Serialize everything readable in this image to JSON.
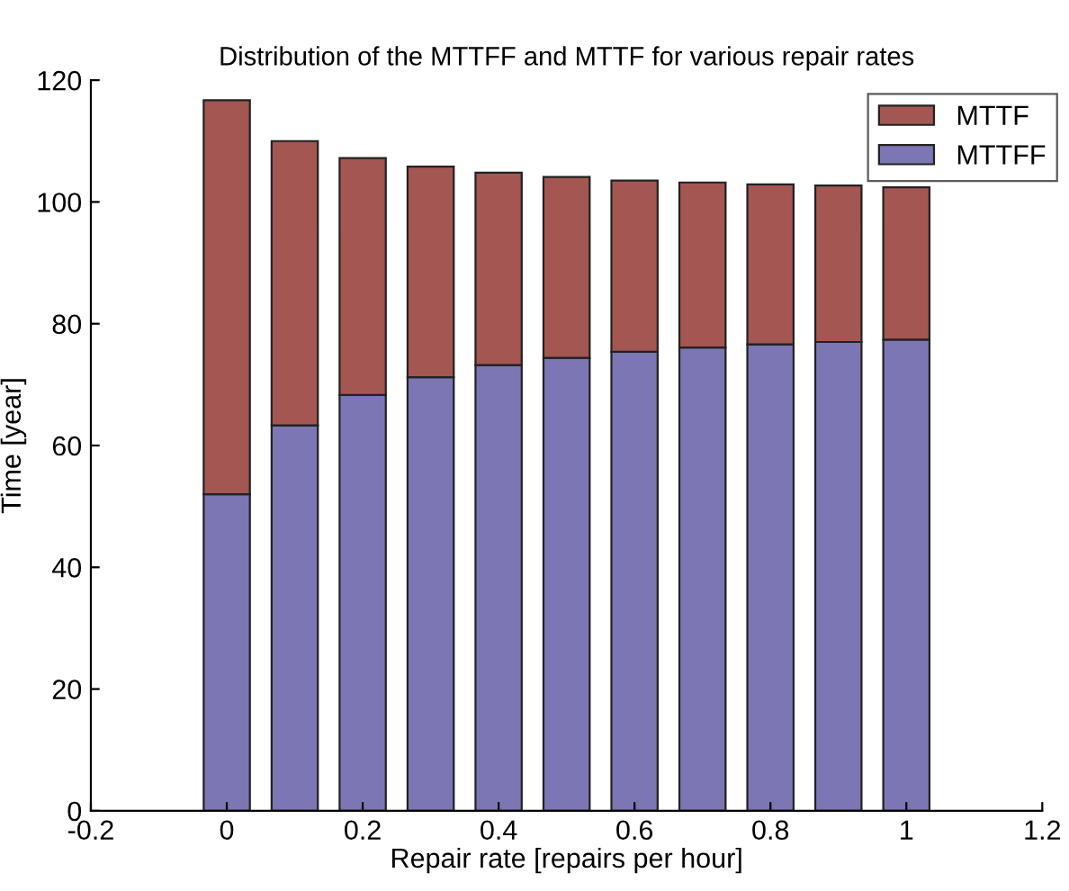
{
  "chart_data": {
    "type": "bar",
    "stacked": true,
    "title": "Distribution of the MTTFF and MTTF for various repair rates",
    "xlabel": "Repair rate [repairs per hour]",
    "ylabel": "Time [year]",
    "x": [
      0,
      0.1,
      0.2,
      0.3,
      0.4,
      0.5,
      0.6,
      0.7,
      0.8,
      0.9,
      1
    ],
    "series": [
      {
        "name": "MTTFF",
        "color": "#7d76b4",
        "values": [
          52,
          63.3,
          68.3,
          71.2,
          73.2,
          74.4,
          75.4,
          76.1,
          76.6,
          77,
          77.4
        ]
      },
      {
        "name": "MTTF",
        "color": "#a35652",
        "values": [
          64.7,
          46.7,
          38.9,
          34.6,
          31.6,
          29.7,
          28.1,
          27.1,
          26.3,
          25.7,
          25
        ]
      }
    ],
    "xlim": [
      -0.2,
      1.2
    ],
    "xticks": [
      -0.2,
      0,
      0.2,
      0.4,
      0.6,
      0.8,
      1,
      1.2
    ],
    "ylim": [
      0,
      120
    ],
    "yticks": [
      0,
      20,
      40,
      60,
      80,
      100,
      120
    ],
    "legend": "top right"
  }
}
